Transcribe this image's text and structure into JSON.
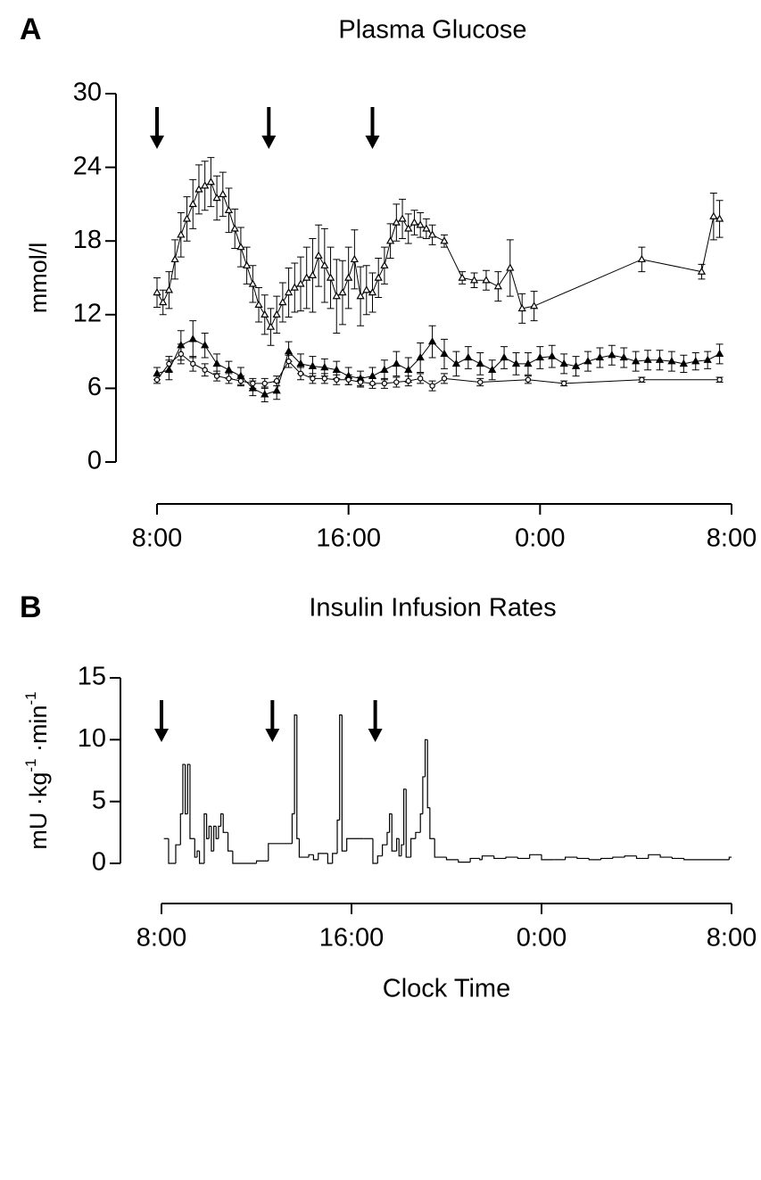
{
  "chart_data": [
    {
      "type": "line",
      "panel": "A",
      "title": "Plasma Glucose",
      "ylabel": [
        "mmol/l"
      ],
      "xlim": [
        8,
        32
      ],
      "xticks": [
        {
          "value": 8,
          "label": "8:00"
        },
        {
          "value": 16,
          "label": "16:00"
        },
        {
          "value": 24,
          "label": "0:00"
        },
        {
          "value": 32,
          "label": "8:00"
        }
      ],
      "ylim": [
        0,
        30
      ],
      "yticks": [
        0,
        6,
        12,
        18,
        24,
        30
      ],
      "arrows": [
        8,
        12.67,
        17
      ],
      "series": [
        {
          "color": "#000",
          "marker": "triangle-open",
          "x": [
            8,
            8.25,
            8.5,
            8.75,
            9,
            9.25,
            9.5,
            9.75,
            10,
            10.25,
            10.5,
            10.75,
            11,
            11.25,
            11.5,
            11.75,
            12,
            12.25,
            12.5,
            12.75,
            13,
            13.25,
            13.5,
            13.75,
            14,
            14.25,
            14.5,
            14.75,
            15,
            15.25,
            15.5,
            15.75,
            16,
            16.25,
            16.5,
            16.75,
            17,
            17.25,
            17.5,
            17.75,
            18,
            18.25,
            18.5,
            18.75,
            19,
            19.25,
            19.5,
            20,
            20.75,
            21.25,
            21.75,
            22.25,
            22.75,
            23.25,
            23.75,
            28.25,
            30.75,
            31.25,
            31.5
          ],
          "values": [
            13.8,
            13,
            14,
            16.5,
            18.5,
            19.8,
            21,
            22.2,
            22.5,
            22.8,
            21.5,
            21.8,
            20.5,
            19,
            17.5,
            16,
            14.5,
            12.8,
            12,
            11,
            12,
            13,
            13.8,
            14.2,
            14.5,
            15,
            15.2,
            16.8,
            16,
            15,
            13.5,
            13.8,
            15,
            16.5,
            13.5,
            14,
            13.8,
            15,
            16,
            18,
            19.5,
            19.8,
            19,
            19.5,
            19.3,
            19,
            18.5,
            18,
            15,
            14.8,
            14.8,
            14.3,
            15.8,
            12.5,
            12.7,
            16.5,
            15.5,
            20,
            19.8
          ],
          "errors": [
            1.2,
            1,
            1.5,
            1.6,
            1.8,
            1.8,
            2,
            2,
            2,
            2,
            1.8,
            1.8,
            1.8,
            1.6,
            1.6,
            1.5,
            1.5,
            1.4,
            1.6,
            1.5,
            1.5,
            1.6,
            2,
            2,
            2.2,
            2.5,
            3,
            2.5,
            3,
            2.5,
            3,
            2.6,
            2.5,
            2.4,
            2.4,
            2,
            1.6,
            1.6,
            1.5,
            1.4,
            1.5,
            1.6,
            1.2,
            1,
            1,
            0.8,
            0.8,
            0.5,
            0.5,
            0.6,
            0.8,
            1.2,
            2.3,
            1.2,
            1.2,
            1,
            0.6,
            1.9,
            1.5
          ]
        },
        {
          "color": "#000",
          "marker": "triangle-filled",
          "x": [
            8,
            8.5,
            9,
            9.5,
            10,
            10.5,
            11,
            11.5,
            12,
            12.5,
            13,
            13.5,
            14,
            14.5,
            15,
            15.5,
            16,
            16.5,
            17,
            17.5,
            18,
            18.5,
            19,
            19.5,
            20,
            20.5,
            21,
            21.5,
            22,
            22.5,
            23,
            23.5,
            24,
            24.5,
            25,
            25.5,
            26,
            26.5,
            27,
            27.5,
            28,
            28.5,
            29,
            29.5,
            30,
            30.5,
            31,
            31.5
          ],
          "values": [
            7.2,
            7.5,
            9.5,
            10,
            9.5,
            8,
            7.5,
            7,
            6,
            5.5,
            5.8,
            9,
            8,
            7.8,
            7.7,
            7.5,
            7,
            6.8,
            7,
            7.5,
            8,
            7.5,
            8.5,
            9.8,
            8.8,
            8,
            8.5,
            8,
            7.5,
            8.5,
            8,
            8,
            8.5,
            8.6,
            8,
            7.8,
            8.2,
            8.5,
            8.7,
            8.5,
            8.2,
            8.3,
            8.3,
            8.2,
            8,
            8.2,
            8.3,
            8.8
          ],
          "errors": [
            0.5,
            0.8,
            1.2,
            1.5,
            1,
            0.8,
            0.7,
            0.7,
            0.6,
            0.6,
            0.7,
            0.8,
            0.8,
            0.8,
            0.7,
            0.7,
            0.7,
            0.6,
            0.7,
            0.8,
            1,
            1,
            1.2,
            1.3,
            1.2,
            1,
            0.9,
            0.9,
            0.8,
            0.9,
            0.9,
            0.9,
            0.9,
            0.9,
            0.8,
            0.8,
            0.8,
            0.8,
            0.8,
            0.8,
            0.8,
            0.8,
            0.8,
            0.8,
            0.7,
            0.7,
            0.7,
            0.8
          ]
        },
        {
          "color": "#000",
          "marker": "circle-open",
          "x": [
            8,
            8.5,
            9,
            9.5,
            10,
            10.5,
            11,
            11.5,
            12,
            12.5,
            13,
            13.5,
            14,
            14.5,
            15,
            15.5,
            16,
            16.5,
            17,
            17.5,
            18,
            18.5,
            19,
            19.5,
            20,
            21.5,
            23.5,
            25,
            28.25,
            31.5
          ],
          "values": [
            6.7,
            8,
            8.8,
            8,
            7.5,
            7,
            6.8,
            6.6,
            6.4,
            6.4,
            6.6,
            8.2,
            7.2,
            6.8,
            6.8,
            6.7,
            6.7,
            6.5,
            6.4,
            6.4,
            6.5,
            6.6,
            6.8,
            6.2,
            6.8,
            6.5,
            6.7,
            6.4,
            6.7,
            6.7
          ],
          "errors": [
            0.3,
            0.6,
            0.8,
            0.6,
            0.5,
            0.4,
            0.4,
            0.4,
            0.4,
            0.4,
            0.4,
            0.5,
            0.5,
            0.4,
            0.4,
            0.4,
            0.4,
            0.4,
            0.4,
            0.4,
            0.4,
            0.4,
            0.4,
            0.4,
            0.4,
            0.3,
            0.3,
            0.2,
            0.2,
            0.2
          ]
        }
      ]
    },
    {
      "type": "step",
      "panel": "B",
      "title": "Insulin Infusion Rates",
      "ylabel": [
        "mU ·kg",
        "-1",
        " ·min",
        "-1"
      ],
      "xlabel": "Clock Time",
      "xlim": [
        8,
        32
      ],
      "xticks": [
        {
          "value": 8,
          "label": "8:00"
        },
        {
          "value": 16,
          "label": "16:00"
        },
        {
          "value": 24,
          "label": "0:00"
        },
        {
          "value": 32,
          "label": "8:00"
        }
      ],
      "ylim": [
        0,
        15
      ],
      "yticks": [
        0,
        5,
        10,
        15
      ],
      "arrows": [
        8,
        12.67,
        17
      ],
      "series": [
        {
          "color": "#000",
          "x": [
            8.1,
            8.3,
            8.6,
            8.8,
            8.9,
            9.0,
            9.1,
            9.2,
            9.4,
            9.5,
            9.6,
            9.8,
            9.9,
            10.0,
            10.1,
            10.2,
            10.3,
            10.4,
            10.5,
            10.6,
            10.8,
            11.0,
            12.0,
            12.5,
            13.5,
            13.6,
            13.7,
            13.8,
            14.2,
            14.4,
            14.6,
            15.0,
            15.2,
            15.4,
            15.5,
            15.6,
            15.8,
            16.5,
            16.9,
            17.1,
            17.3,
            17.5,
            17.6,
            17.7,
            17.9,
            18.0,
            18.1,
            18.2,
            18.3,
            18.5,
            18.7,
            18.9,
            19.0,
            19.1,
            19.2,
            19.3,
            19.5,
            20.0,
            20.5,
            21.0,
            21.4,
            21.5,
            22.0,
            22.5,
            23.0,
            23.5,
            24.0,
            24.5,
            25.0,
            25.5,
            26.0,
            26.5,
            27.0,
            27.5,
            28.0,
            28.5,
            29.0,
            29.5,
            30.0,
            31.9
          ],
          "values": [
            2,
            0,
            1.5,
            4,
            8,
            4,
            8,
            2,
            0.5,
            1,
            0,
            4,
            2,
            3,
            1,
            3,
            2,
            3,
            4,
            2.5,
            1,
            0,
            0.2,
            1.6,
            4,
            12,
            2,
            0.5,
            0.7,
            0.3,
            0.8,
            0,
            0.8,
            3.5,
            12,
            1,
            2,
            2,
            0,
            0.6,
            1.5,
            2.5,
            4,
            1,
            2,
            0.6,
            1.5,
            6,
            0.5,
            2,
            2.5,
            4,
            7,
            10,
            4.5,
            2,
            0.5,
            0.3,
            0.1,
            0.4,
            0.3,
            0.6,
            0.4,
            0.5,
            0.4,
            0.7,
            0.3,
            0.3,
            0.5,
            0.4,
            0.3,
            0.4,
            0.5,
            0.6,
            0.4,
            0.7,
            0.5,
            0.4,
            0.3,
            0.5
          ]
        }
      ]
    }
  ]
}
